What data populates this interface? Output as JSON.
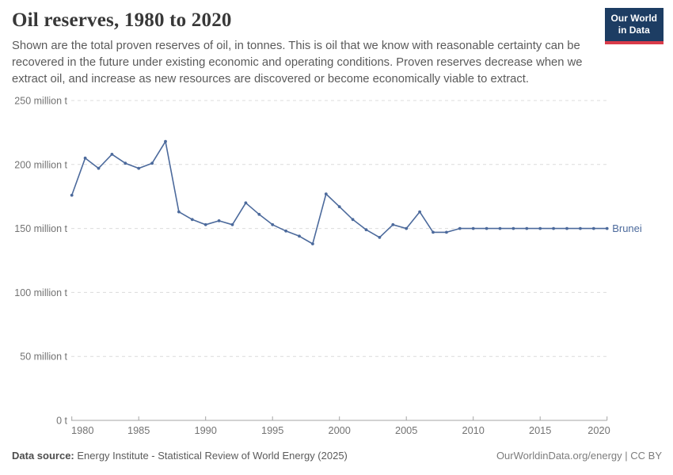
{
  "header": {
    "title": "Oil reserves, 1980 to 2020",
    "subtitle": "Shown are the total proven reserves of oil, in tonnes. This is oil that we know with reasonable certainty can be recovered in the future under existing economic and operating conditions. Proven reserves decrease when we extract oil, and increase as new resources are discovered or become economically viable to extract."
  },
  "logo": {
    "line1": "Our World",
    "line2": "in Data"
  },
  "chart_data": {
    "type": "line",
    "title": "Oil reserves, 1980 to 2020",
    "xlabel": "",
    "ylabel": "",
    "unit": "million t",
    "ylim": [
      0,
      250
    ],
    "grid": "horizontal-dashed",
    "legend_position": "end-of-line-label",
    "x": [
      1980,
      1981,
      1982,
      1983,
      1984,
      1985,
      1986,
      1987,
      1988,
      1989,
      1990,
      1991,
      1992,
      1993,
      1994,
      1995,
      1996,
      1997,
      1998,
      1999,
      2000,
      2001,
      2002,
      2003,
      2004,
      2005,
      2006,
      2007,
      2008,
      2009,
      2010,
      2011,
      2012,
      2013,
      2014,
      2015,
      2016,
      2017,
      2018,
      2019,
      2020
    ],
    "series": [
      {
        "name": "Brunei",
        "values": [
          176,
          205,
          197,
          208,
          201,
          197,
          201,
          218,
          163,
          157,
          153,
          156,
          153,
          170,
          161,
          153,
          148,
          144,
          138,
          177,
          167,
          157,
          149,
          143,
          153,
          150,
          163,
          147,
          147,
          150,
          150,
          150,
          150,
          150,
          150,
          150,
          150,
          150,
          150,
          150,
          150
        ]
      }
    ],
    "yticks": [
      {
        "value": 0,
        "label": "0 t"
      },
      {
        "value": 50,
        "label": "50 million t"
      },
      {
        "value": 100,
        "label": "100 million t"
      },
      {
        "value": 150,
        "label": "150 million t"
      },
      {
        "value": 200,
        "label": "200 million t"
      },
      {
        "value": 250,
        "label": "250 million t"
      }
    ],
    "xticks": [
      1980,
      1985,
      1990,
      1995,
      2000,
      2005,
      2010,
      2015,
      2020
    ]
  },
  "footer": {
    "source_label": "Data source:",
    "source_text": " Energy Institute - Statistical Review of World Energy (2025)",
    "rights": "OurWorldinData.org/energy | CC BY"
  },
  "colors": {
    "line": "#4c6a9c",
    "grid": "#dcdcdc",
    "axis": "#a5a5a5",
    "tick_label": "#737373",
    "logo_bg": "#1d3d63",
    "logo_accent": "#d93b4a"
  }
}
